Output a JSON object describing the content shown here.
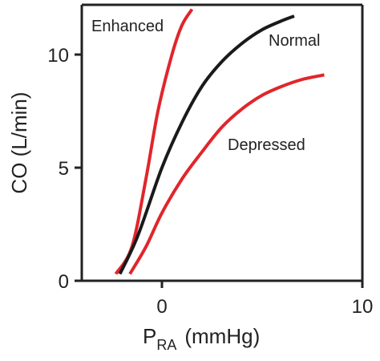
{
  "chart_data": {
    "type": "line",
    "xlabel": "P",
    "xlabel_sub": "RA",
    "xlabel_unit": "(mmHg)",
    "ylabel": "CO (L/min)",
    "xlim": [
      -4,
      10
    ],
    "ylim": [
      0,
      12.2
    ],
    "xticks": [
      0,
      10
    ],
    "yticks": [
      0,
      5,
      10
    ],
    "grid": false,
    "series": [
      {
        "name": "Enhanced",
        "color": "#e0262b",
        "points": [
          [
            -2.3,
            0.3
          ],
          [
            -1.5,
            1.5
          ],
          [
            -0.8,
            4.5
          ],
          [
            -0.2,
            7.5
          ],
          [
            0.5,
            10.0
          ],
          [
            1.0,
            11.3
          ],
          [
            1.5,
            12.0
          ]
        ]
      },
      {
        "name": "Normal",
        "color": "#1a1a1a",
        "points": [
          [
            -2.1,
            0.3
          ],
          [
            -1.2,
            2.0
          ],
          [
            0,
            5.0
          ],
          [
            1.0,
            7.0
          ],
          [
            2.0,
            8.6
          ],
          [
            3.0,
            9.7
          ],
          [
            4.0,
            10.5
          ],
          [
            5.0,
            11.1
          ],
          [
            6.0,
            11.5
          ],
          [
            6.6,
            11.7
          ]
        ]
      },
      {
        "name": "Depressed",
        "color": "#e0262b",
        "points": [
          [
            -1.6,
            0.3
          ],
          [
            -0.8,
            1.5
          ],
          [
            0,
            3.0
          ],
          [
            1.0,
            4.5
          ],
          [
            2.0,
            5.7
          ],
          [
            3.0,
            6.8
          ],
          [
            4.0,
            7.6
          ],
          [
            5.0,
            8.2
          ],
          [
            6.0,
            8.6
          ],
          [
            7.0,
            8.9
          ],
          [
            8.1,
            9.1
          ]
        ]
      }
    ]
  }
}
